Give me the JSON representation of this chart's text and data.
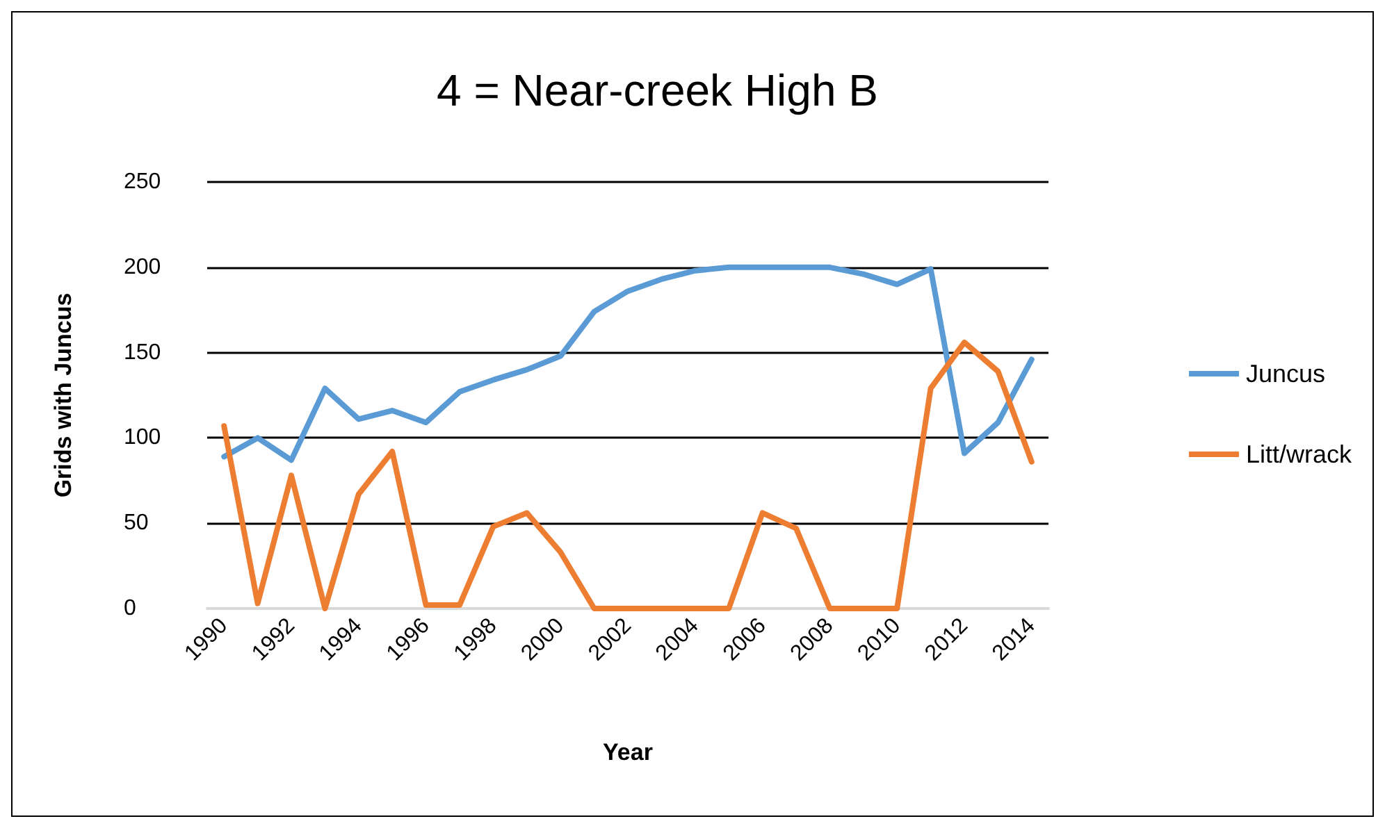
{
  "chart_data": {
    "type": "line",
    "title": "4 = Near-creek High B",
    "xlabel": "Year",
    "ylabel": "Grids with Juncus",
    "categories": [
      "1990",
      null,
      "1992",
      null,
      "1994",
      null,
      "1996",
      null,
      "1998",
      null,
      "2000",
      null,
      "2002",
      null,
      "2004",
      null,
      "2006",
      null,
      "2008",
      null,
      "2010",
      null,
      "2012",
      null,
      "2014"
    ],
    "series": [
      {
        "name": "Juncus",
        "color": "#5b9bd5",
        "values": [
          89,
          100,
          87,
          129,
          111,
          116,
          109,
          127,
          134,
          140,
          148,
          174,
          186,
          193,
          198,
          200,
          200,
          200,
          200,
          196,
          190,
          199,
          91,
          109,
          146
        ]
      },
      {
        "name": "Litt/wrack",
        "color": "#ed7d31",
        "values": [
          107,
          3,
          78,
          0,
          67,
          92,
          2,
          2,
          48,
          56,
          33,
          0,
          0,
          0,
          0,
          0,
          56,
          47,
          0,
          0,
          0,
          129,
          156,
          139,
          86
        ]
      }
    ],
    "ylim": [
      0,
      250
    ],
    "yticks": [
      0,
      50,
      100,
      150,
      200,
      250
    ],
    "grid": "y",
    "legend": "right",
    "marker": "none",
    "line_style": "solid"
  }
}
